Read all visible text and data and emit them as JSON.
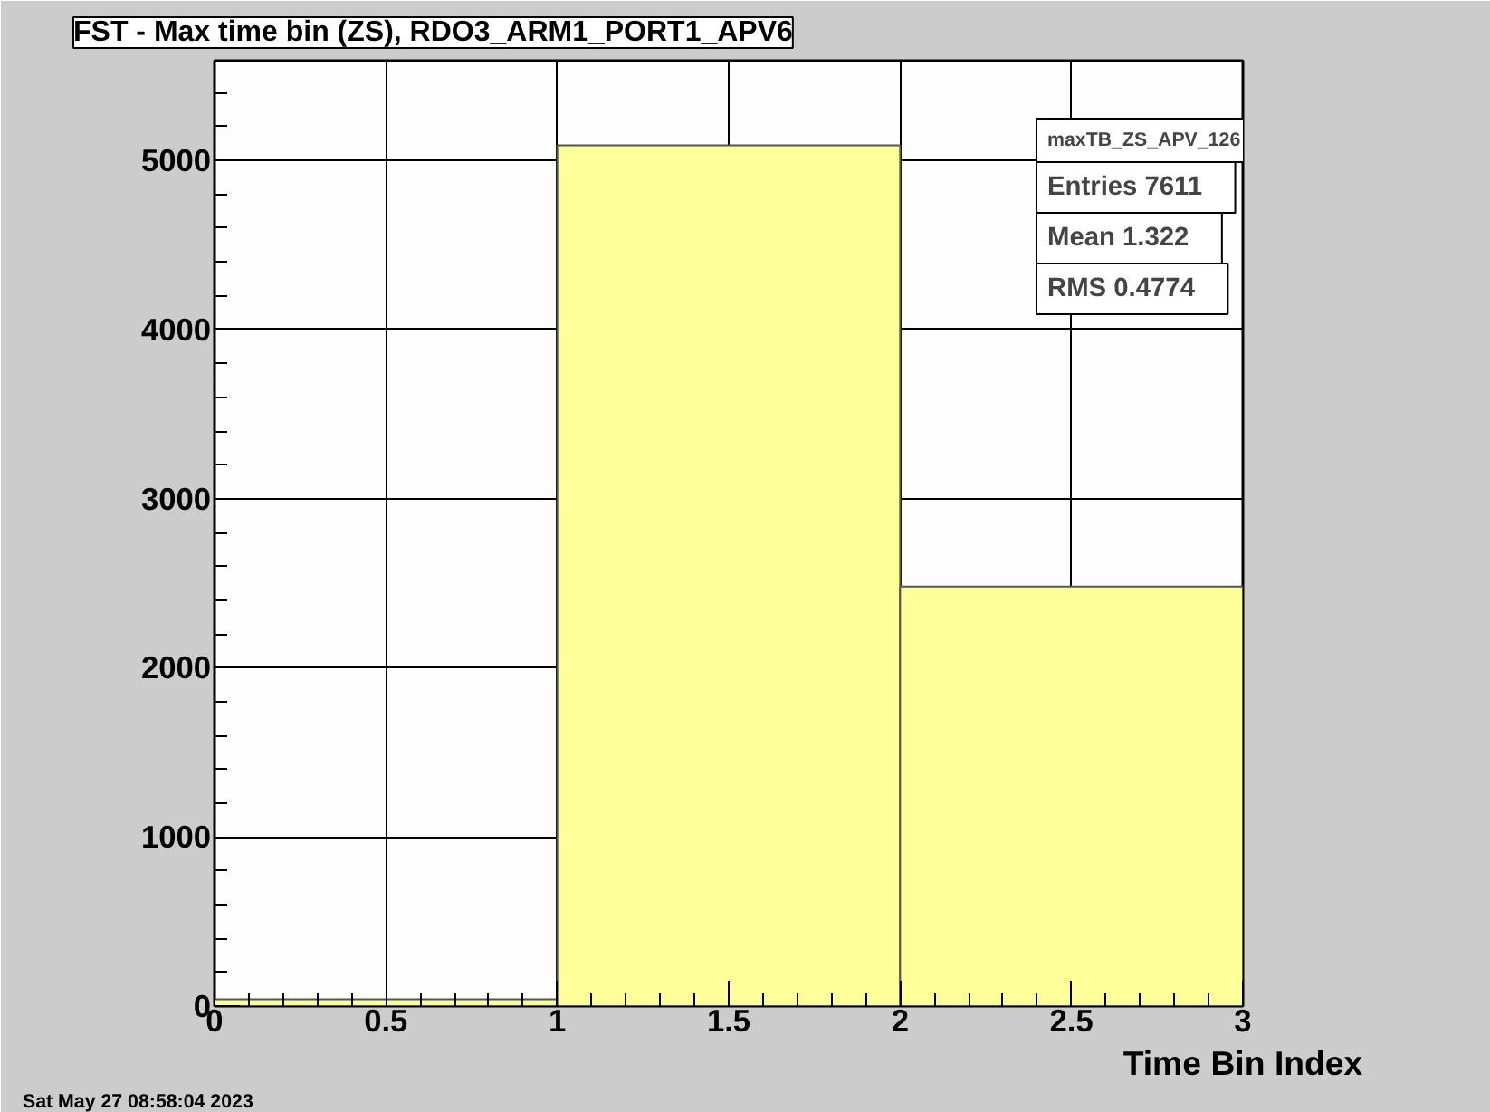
{
  "chart_data": {
    "type": "histogram",
    "title": "FST - Max time bin (ZS), RDO3_ARM1_PORT1_APV6",
    "xlabel": "Time Bin Index",
    "bins": [
      0,
      1,
      2,
      3
    ],
    "values": [
      40,
      5090,
      2480
    ],
    "color": "#ffff99",
    "xlim": [
      0,
      3
    ],
    "xticks": [
      0,
      0.5,
      1,
      1.5,
      2,
      2.5,
      3
    ],
    "ylim": [
      0,
      5590
    ],
    "yticks": [
      0,
      1000,
      2000,
      3000,
      4000,
      5000
    ],
    "grid": true,
    "annotations": [
      "Sat May 27 08:58:04 2023",
      "maxTB_ZS_APV_126",
      "Entries    7611",
      "Mean    1.322",
      "RMS    0.4774"
    ]
  }
}
